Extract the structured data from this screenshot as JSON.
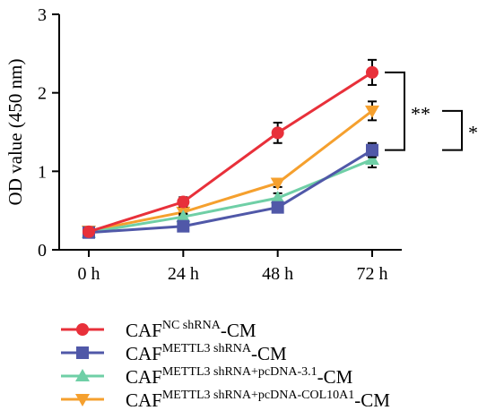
{
  "chart_data": {
    "type": "line",
    "categories": [
      "0 h",
      "24 h",
      "48 h",
      "72 h"
    ],
    "ylabel": "OD value (450 nm)",
    "xlabel": "",
    "ylim": [
      0,
      3
    ],
    "yticks": [
      0,
      1,
      2,
      3
    ],
    "grid": false,
    "legend_placement": "bottom",
    "series": [
      {
        "base": "CAF",
        "sup": "NC shRNA",
        "suffix": "-CM",
        "color": "#e8303a",
        "marker": "circle",
        "values": [
          0.23,
          0.61,
          1.49,
          2.26
        ],
        "errors": [
          0.04,
          0.06,
          0.13,
          0.16
        ]
      },
      {
        "base": "CAF",
        "sup": "METTL3 shRNA",
        "suffix": "-CM",
        "color": "#5058a8",
        "marker": "square",
        "values": [
          0.22,
          0.3,
          0.54,
          1.27
        ],
        "errors": [
          0.03,
          0.03,
          0.05,
          0.09
        ]
      },
      {
        "base": "CAF",
        "sup": "METTL3 shRNA+pcDNA-3.1",
        "suffix": "-CM",
        "color": "#6fcfa6",
        "marker": "triangle-up",
        "values": [
          0.22,
          0.42,
          0.66,
          1.15
        ],
        "errors": [
          0.03,
          0.04,
          0.06,
          0.1
        ]
      },
      {
        "base": "CAF",
        "sup": "METTL3 shRNA+pcDNA-COL10A1",
        "suffix": "-CM",
        "color": "#f5a02e",
        "marker": "triangle-down",
        "values": [
          0.24,
          0.48,
          0.85,
          1.77
        ],
        "errors": [
          0.03,
          0.04,
          0.05,
          0.12
        ]
      }
    ],
    "annotations": [
      {
        "label": "**",
        "from_series": 0,
        "to_series": 1,
        "at_category": 3
      },
      {
        "label": "*",
        "from_series": 3,
        "to_series": 1,
        "at_category": 3
      }
    ]
  }
}
